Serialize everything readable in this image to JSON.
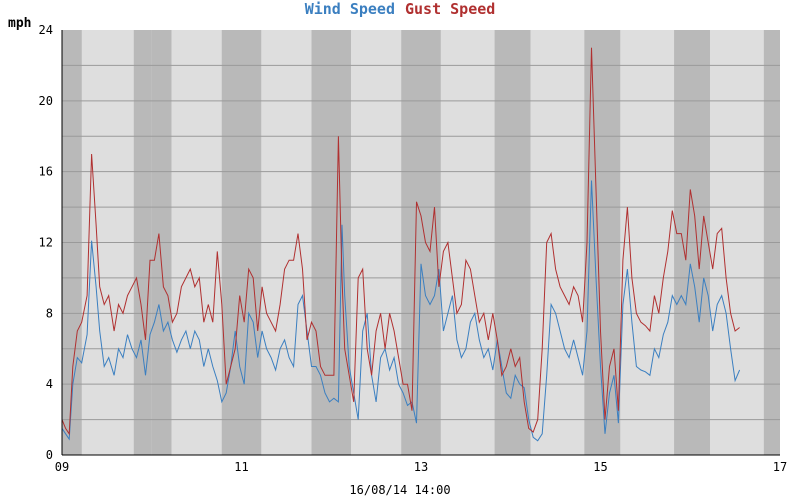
{
  "chart_data": {
    "type": "line",
    "title": "",
    "ylabel": "mph",
    "xlabel": "16/08/14 14:00",
    "ylim": [
      0,
      24
    ],
    "xlim": [
      9,
      17
    ],
    "y_ticks": [
      "0",
      "4",
      "8",
      "12",
      "16",
      "20",
      "24"
    ],
    "x_ticks": [
      "09",
      "11",
      "13",
      "15",
      "17"
    ],
    "x_tick_values": [
      9,
      11,
      13,
      15,
      17
    ],
    "grid": true,
    "legend": "top-center",
    "background_bands": [
      [
        9.0,
        9.22
      ],
      [
        9.8,
        10.0
      ],
      [
        10.0,
        10.22
      ],
      [
        10.78,
        11.22
      ],
      [
        11.78,
        12.22
      ],
      [
        12.78,
        13.22
      ],
      [
        13.82,
        14.22
      ],
      [
        14.82,
        15.22
      ],
      [
        15.82,
        16.22
      ],
      [
        16.82,
        17.0
      ]
    ],
    "series": [
      {
        "name": "Wind Speed",
        "color": "#3b7fc0",
        "x": [
          9.0,
          9.04,
          9.08,
          9.12,
          9.17,
          9.22,
          9.28,
          9.33,
          9.38,
          9.42,
          9.47,
          9.52,
          9.58,
          9.63,
          9.68,
          9.73,
          9.78,
          9.83,
          9.88,
          9.93,
          9.98,
          10.03,
          10.08,
          10.13,
          10.18,
          10.23,
          10.28,
          10.33,
          10.38,
          10.43,
          10.48,
          10.53,
          10.58,
          10.63,
          10.68,
          10.73,
          10.78,
          10.83,
          10.88,
          10.93,
          10.98,
          11.03,
          11.08,
          11.13,
          11.18,
          11.23,
          11.28,
          11.33,
          11.38,
          11.43,
          11.48,
          11.53,
          11.58,
          11.63,
          11.68,
          11.73,
          11.78,
          11.83,
          11.88,
          11.93,
          11.98,
          12.03,
          12.08,
          12.12,
          12.15,
          12.2,
          12.25,
          12.3,
          12.35,
          12.4,
          12.45,
          12.5,
          12.55,
          12.6,
          12.65,
          12.7,
          12.75,
          12.8,
          12.85,
          12.9,
          12.95,
          13.0,
          13.05,
          13.1,
          13.15,
          13.2,
          13.25,
          13.3,
          13.35,
          13.4,
          13.45,
          13.5,
          13.55,
          13.6,
          13.65,
          13.7,
          13.75,
          13.8,
          13.85,
          13.9,
          13.95,
          14.0,
          14.05,
          14.1,
          14.15,
          14.2,
          14.25,
          14.3,
          14.35,
          14.4,
          14.45,
          14.5,
          14.55,
          14.6,
          14.65,
          14.7,
          14.75,
          14.8,
          14.85,
          14.9,
          14.95,
          15.0,
          15.05,
          15.1,
          15.15,
          15.2,
          15.25,
          15.3,
          15.35,
          15.4,
          15.45,
          15.5,
          15.55,
          15.6,
          15.65,
          15.7,
          15.75,
          15.8,
          15.85,
          15.9,
          15.95,
          16.0,
          16.05,
          16.1,
          16.15,
          16.2,
          16.25,
          16.3,
          16.35,
          16.4,
          16.45,
          16.5,
          16.55
        ],
        "values": [
          1.5,
          1.2,
          0.9,
          4.0,
          5.5,
          5.2,
          6.8,
          12.1,
          9.5,
          7.0,
          5.0,
          5.5,
          4.5,
          6.0,
          5.5,
          6.8,
          6.0,
          5.5,
          6.5,
          4.5,
          6.8,
          7.5,
          8.5,
          7.0,
          7.5,
          6.5,
          5.8,
          6.5,
          7.0,
          6.0,
          7.0,
          6.5,
          5.0,
          6.0,
          5.0,
          4.2,
          3.0,
          3.5,
          5.0,
          7.0,
          5.0,
          4.0,
          8.0,
          7.5,
          5.5,
          7.0,
          6.0,
          5.5,
          4.8,
          6.0,
          6.5,
          5.5,
          5.0,
          8.5,
          9.0,
          7.0,
          5.0,
          5.0,
          4.5,
          3.5,
          3.0,
          3.2,
          3.0,
          13.0,
          9.0,
          5.0,
          3.5,
          2.0,
          7.0,
          8.0,
          4.5,
          3.0,
          5.5,
          6.0,
          4.8,
          5.5,
          4.0,
          3.5,
          2.8,
          3.0,
          1.8,
          10.8,
          9.0,
          8.5,
          9.0,
          10.5,
          7.0,
          8.0,
          9.0,
          6.5,
          5.5,
          6.0,
          7.5,
          8.0,
          6.5,
          5.5,
          6.0,
          4.8,
          6.5,
          5.0,
          3.5,
          3.2,
          4.5,
          4.0,
          3.8,
          2.0,
          1.0,
          0.8,
          1.2,
          4.5,
          8.5,
          8.0,
          7.0,
          6.0,
          5.5,
          6.5,
          5.5,
          4.5,
          7.0,
          15.5,
          10.0,
          5.0,
          1.2,
          3.5,
          4.5,
          1.8,
          8.5,
          10.5,
          7.5,
          5.0,
          4.8,
          4.7,
          4.5,
          6.0,
          5.5,
          6.8,
          7.5,
          9.0,
          8.5,
          9.0,
          8.5,
          10.8,
          9.5,
          7.5,
          10.0,
          9.0,
          7.0,
          8.5,
          9.0,
          8.0,
          6.0,
          4.2,
          4.8
        ]
      },
      {
        "name": "Gust Speed",
        "color": "#b03030",
        "x": [
          9.0,
          9.04,
          9.08,
          9.12,
          9.17,
          9.22,
          9.28,
          9.33,
          9.38,
          9.42,
          9.47,
          9.52,
          9.58,
          9.63,
          9.68,
          9.73,
          9.78,
          9.83,
          9.88,
          9.93,
          9.98,
          10.03,
          10.08,
          10.13,
          10.18,
          10.23,
          10.28,
          10.33,
          10.38,
          10.43,
          10.48,
          10.53,
          10.58,
          10.63,
          10.68,
          10.73,
          10.78,
          10.83,
          10.88,
          10.93,
          10.98,
          11.03,
          11.08,
          11.13,
          11.18,
          11.23,
          11.28,
          11.33,
          11.38,
          11.43,
          11.48,
          11.53,
          11.58,
          11.63,
          11.68,
          11.73,
          11.78,
          11.83,
          11.88,
          11.93,
          11.98,
          12.03,
          12.08,
          12.12,
          12.15,
          12.2,
          12.25,
          12.3,
          12.35,
          12.4,
          12.45,
          12.5,
          12.55,
          12.6,
          12.65,
          12.7,
          12.75,
          12.8,
          12.85,
          12.9,
          12.95,
          13.0,
          13.05,
          13.1,
          13.15,
          13.2,
          13.25,
          13.3,
          13.35,
          13.4,
          13.45,
          13.5,
          13.55,
          13.6,
          13.65,
          13.7,
          13.75,
          13.8,
          13.85,
          13.9,
          13.95,
          14.0,
          14.05,
          14.1,
          14.15,
          14.2,
          14.25,
          14.3,
          14.35,
          14.4,
          14.45,
          14.5,
          14.55,
          14.6,
          14.65,
          14.7,
          14.75,
          14.8,
          14.85,
          14.9,
          14.95,
          15.0,
          15.05,
          15.1,
          15.15,
          15.2,
          15.25,
          15.3,
          15.35,
          15.4,
          15.45,
          15.5,
          15.55,
          15.6,
          15.65,
          15.7,
          15.75,
          15.8,
          15.85,
          15.9,
          15.95,
          16.0,
          16.05,
          16.1,
          16.15,
          16.2,
          16.25,
          16.3,
          16.35,
          16.4,
          16.45,
          16.5,
          16.55
        ],
        "values": [
          2.0,
          1.5,
          1.2,
          5.0,
          7.0,
          7.5,
          9.0,
          17.0,
          13.0,
          9.5,
          8.5,
          9.0,
          7.0,
          8.5,
          8.0,
          9.0,
          9.5,
          10.0,
          8.5,
          6.5,
          11.0,
          11.0,
          12.5,
          9.5,
          9.0,
          7.5,
          8.0,
          9.5,
          10.0,
          10.5,
          9.5,
          10.0,
          7.5,
          8.5,
          7.5,
          11.5,
          8.5,
          4.0,
          5.0,
          6.0,
          9.0,
          7.5,
          10.5,
          10.0,
          7.0,
          9.5,
          8.0,
          7.5,
          7.0,
          8.5,
          10.5,
          11.0,
          11.0,
          12.5,
          10.5,
          6.5,
          7.5,
          7.0,
          5.0,
          4.5,
          4.5,
          4.5,
          18.0,
          10.0,
          6.0,
          4.5,
          3.0,
          10.0,
          10.5,
          6.0,
          4.5,
          7.0,
          8.0,
          6.0,
          8.0,
          7.0,
          5.5,
          4.0,
          4.0,
          2.5,
          14.3,
          13.5,
          12.0,
          11.5,
          14.0,
          9.5,
          11.5,
          12.0,
          10.0,
          8.0,
          8.5,
          11.0,
          10.5,
          9.0,
          7.5,
          8.0,
          6.5,
          8.0,
          6.5,
          4.5,
          5.0,
          6.0,
          5.0,
          5.5,
          3.0,
          1.5,
          1.3,
          2.0,
          6.0,
          12.0,
          12.5,
          10.5,
          9.5,
          9.0,
          8.5,
          9.5,
          9.0,
          7.5,
          12.0,
          23.0,
          15.0,
          7.0,
          2.0,
          5.0,
          6.0,
          2.5,
          11.0,
          14.0,
          10.0,
          8.0,
          7.5,
          7.3,
          7.0,
          9.0,
          8.0,
          10.0,
          11.5,
          13.8,
          12.5,
          12.5,
          11.0,
          15.0,
          13.5,
          10.5,
          13.5,
          12.0,
          10.5,
          12.5,
          12.8,
          10.0,
          8.0,
          7.0,
          7.2
        ]
      }
    ]
  }
}
